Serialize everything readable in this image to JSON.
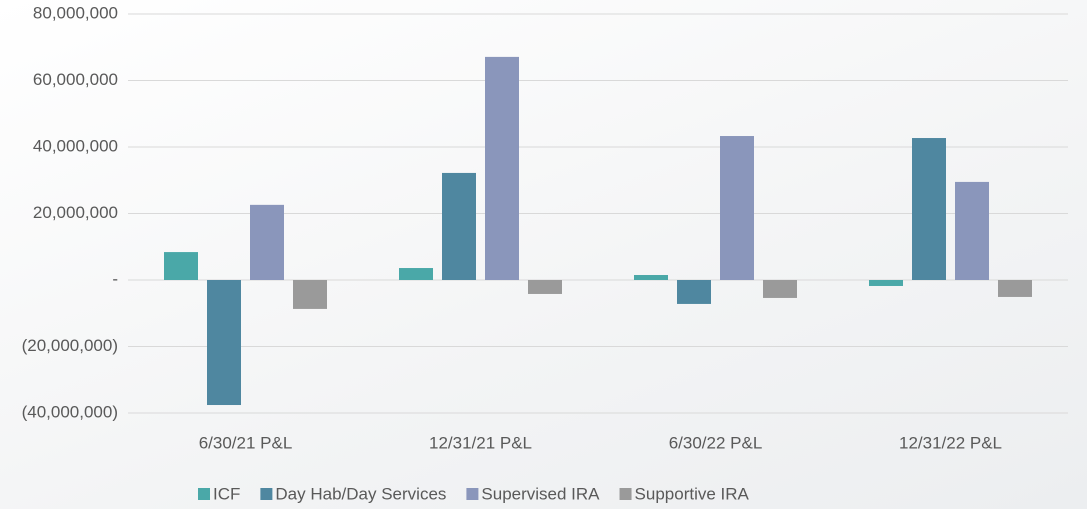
{
  "chart_data": {
    "type": "bar",
    "categories": [
      "6/30/21 P&L",
      "12/31/21 P&L",
      "6/30/22 P&L",
      "12/31/22 P&L"
    ],
    "series": [
      {
        "name": "ICF",
        "color": "#4aa8a8",
        "values": [
          8400000,
          3600000,
          1500000,
          -1800000
        ]
      },
      {
        "name": "Day Hab/Day Services",
        "color": "#4f87a0",
        "values": [
          -37600000,
          32200000,
          -7200000,
          42700000
        ]
      },
      {
        "name": "Supervised IRA",
        "color": "#8a96bb",
        "values": [
          22600000,
          67100000,
          43300000,
          29500000
        ]
      },
      {
        "name": "Supportive IRA",
        "color": "#9a9a9a",
        "values": [
          -8700000,
          -4200000,
          -5400000,
          -5100000
        ]
      }
    ],
    "ylim": [
      -40000000,
      80000000
    ],
    "yticks": [
      {
        "value": -40000000,
        "label": "(40,000,000)"
      },
      {
        "value": -20000000,
        "label": "(20,000,000)"
      },
      {
        "value": 0,
        "label": "-"
      },
      {
        "value": 20000000,
        "label": "20,000,000"
      },
      {
        "value": 40000000,
        "label": "40,000,000"
      },
      {
        "value": 60000000,
        "label": "60,000,000"
      },
      {
        "value": 80000000,
        "label": "80,000,000"
      }
    ],
    "grid": true,
    "legend": "bottom"
  }
}
